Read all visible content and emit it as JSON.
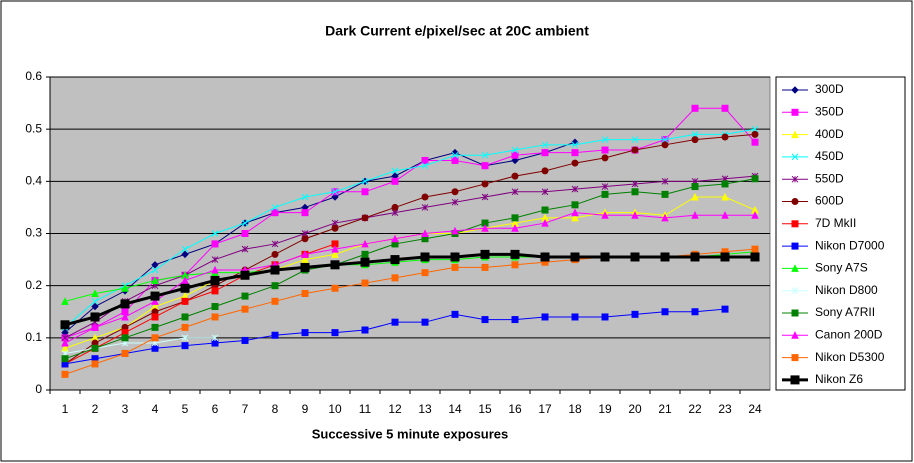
{
  "chart_data": {
    "type": "line",
    "title": "Dark Current e/pixel/sec at 20C ambient",
    "x_label": "Successive 5 minute exposures",
    "categories": [
      1,
      2,
      3,
      4,
      5,
      6,
      7,
      8,
      9,
      10,
      11,
      12,
      13,
      14,
      15,
      16,
      17,
      18,
      19,
      20,
      21,
      22,
      23,
      24
    ],
    "ylim": [
      0,
      0.6
    ],
    "yticks": [
      0,
      0.1,
      0.2,
      0.3,
      0.4,
      0.5,
      0.6
    ],
    "grid": true,
    "legend": "right",
    "series": [
      {
        "name": "300D",
        "color": "#000080",
        "marker": "diamond",
        "values": [
          0.11,
          0.16,
          0.19,
          0.24,
          0.26,
          0.28,
          0.32,
          0.34,
          0.35,
          0.37,
          0.4,
          0.41,
          0.44,
          0.455,
          0.43,
          0.44,
          0.455,
          0.475,
          null,
          null,
          null,
          null,
          null,
          null
        ]
      },
      {
        "name": "350D",
        "color": "#ff00ff",
        "marker": "square",
        "values": [
          0.1,
          0.12,
          0.15,
          0.21,
          0.22,
          0.28,
          0.3,
          0.34,
          0.34,
          0.38,
          0.38,
          0.4,
          0.44,
          0.44,
          0.43,
          0.45,
          0.455,
          0.455,
          0.46,
          0.46,
          0.48,
          0.54,
          0.54,
          0.475
        ]
      },
      {
        "name": "400D",
        "color": "#ffff00",
        "marker": "triangle",
        "values": [
          0.08,
          0.1,
          0.12,
          0.16,
          0.18,
          0.21,
          0.22,
          0.23,
          0.25,
          0.26,
          0.28,
          0.29,
          0.3,
          0.3,
          0.31,
          0.32,
          0.33,
          0.33,
          0.34,
          0.34,
          0.335,
          0.37,
          0.37,
          0.345
        ]
      },
      {
        "name": "450D",
        "color": "#00ffff",
        "marker": "x",
        "values": [
          0.12,
          0.17,
          0.2,
          0.23,
          0.27,
          0.3,
          0.32,
          0.35,
          0.37,
          0.38,
          0.4,
          0.42,
          0.43,
          0.45,
          0.45,
          0.46,
          0.47,
          0.47,
          0.48,
          0.48,
          0.48,
          0.49,
          0.49,
          0.5
        ]
      },
      {
        "name": "550D",
        "color": "#800080",
        "marker": "star",
        "values": [
          0.1,
          0.13,
          0.17,
          0.2,
          0.22,
          0.25,
          0.27,
          0.28,
          0.3,
          0.32,
          0.33,
          0.34,
          0.35,
          0.36,
          0.37,
          0.38,
          0.38,
          0.385,
          0.39,
          0.395,
          0.4,
          0.4,
          0.405,
          0.41
        ]
      },
      {
        "name": "600D",
        "color": "#800000",
        "marker": "circle",
        "values": [
          0.05,
          0.09,
          0.12,
          0.15,
          0.17,
          0.2,
          0.23,
          0.26,
          0.29,
          0.31,
          0.33,
          0.35,
          0.37,
          0.38,
          0.395,
          0.41,
          0.42,
          0.435,
          0.445,
          0.46,
          0.47,
          0.48,
          0.485,
          0.49
        ]
      },
      {
        "name": "7D MkII",
        "color": "#ff0000",
        "marker": "square",
        "values": [
          0.05,
          0.08,
          0.11,
          0.14,
          0.17,
          0.19,
          0.22,
          0.24,
          0.26,
          0.28,
          null,
          null,
          null,
          null,
          null,
          null,
          null,
          null,
          null,
          null,
          null,
          null,
          null,
          null
        ]
      },
      {
        "name": "Nikon D7000",
        "color": "#0000ff",
        "marker": "square",
        "values": [
          0.05,
          0.06,
          0.07,
          0.08,
          0.085,
          0.09,
          0.095,
          0.105,
          0.11,
          0.11,
          0.115,
          0.13,
          0.13,
          0.145,
          0.135,
          0.135,
          0.14,
          0.14,
          0.14,
          0.145,
          0.15,
          0.15,
          0.155,
          null
        ]
      },
      {
        "name": "Sony A7S",
        "color": "#00ff00",
        "marker": "triangle",
        "values": [
          0.17,
          0.185,
          0.195,
          0.21,
          0.22,
          0.225,
          0.225,
          0.23,
          0.235,
          0.24,
          0.24,
          0.245,
          0.25,
          0.25,
          0.255,
          0.255,
          0.255,
          0.255,
          0.255,
          0.255,
          0.255,
          0.255,
          0.26,
          0.265
        ]
      },
      {
        "name": "Nikon D800",
        "color": "#ccffff",
        "marker": "star",
        "values": [
          0.07,
          0.08,
          0.09,
          0.09,
          0.1,
          0.1,
          null,
          null,
          null,
          null,
          null,
          null,
          null,
          null,
          null,
          null,
          null,
          null,
          null,
          null,
          null,
          null,
          null,
          null
        ]
      },
      {
        "name": "Sony A7RII",
        "color": "#008000",
        "marker": "square",
        "values": [
          0.06,
          0.08,
          0.1,
          0.12,
          0.14,
          0.16,
          0.18,
          0.2,
          0.23,
          0.24,
          0.26,
          0.28,
          0.29,
          0.3,
          0.32,
          0.33,
          0.345,
          0.355,
          0.375,
          0.38,
          0.375,
          0.39,
          0.395,
          0.405
        ]
      },
      {
        "name": "Canon 200D",
        "color": "#ff00ff",
        "marker": "triangle",
        "values": [
          0.09,
          0.12,
          0.14,
          0.17,
          0.21,
          0.23,
          0.23,
          0.24,
          0.26,
          0.27,
          0.28,
          0.29,
          0.3,
          0.305,
          0.31,
          0.31,
          0.32,
          0.34,
          0.335,
          0.335,
          0.33,
          0.335,
          0.335,
          0.335
        ]
      },
      {
        "name": "Nikon D5300",
        "color": "#ff6600",
        "marker": "square",
        "values": [
          0.03,
          0.05,
          0.07,
          0.1,
          0.12,
          0.14,
          0.155,
          0.17,
          0.185,
          0.195,
          0.205,
          0.215,
          0.225,
          0.235,
          0.235,
          0.24,
          0.245,
          0.25,
          0.255,
          0.255,
          0.255,
          0.26,
          0.265,
          0.27
        ]
      },
      {
        "name": "Nikon Z6",
        "color": "#000000",
        "marker": "square",
        "line_width": 3,
        "values": [
          0.125,
          0.14,
          0.165,
          0.18,
          0.195,
          0.21,
          0.22,
          0.23,
          0.235,
          0.24,
          0.245,
          0.25,
          0.255,
          0.255,
          0.26,
          0.26,
          0.255,
          0.255,
          0.255,
          0.255,
          0.255,
          0.255,
          0.255,
          0.255
        ]
      }
    ]
  }
}
